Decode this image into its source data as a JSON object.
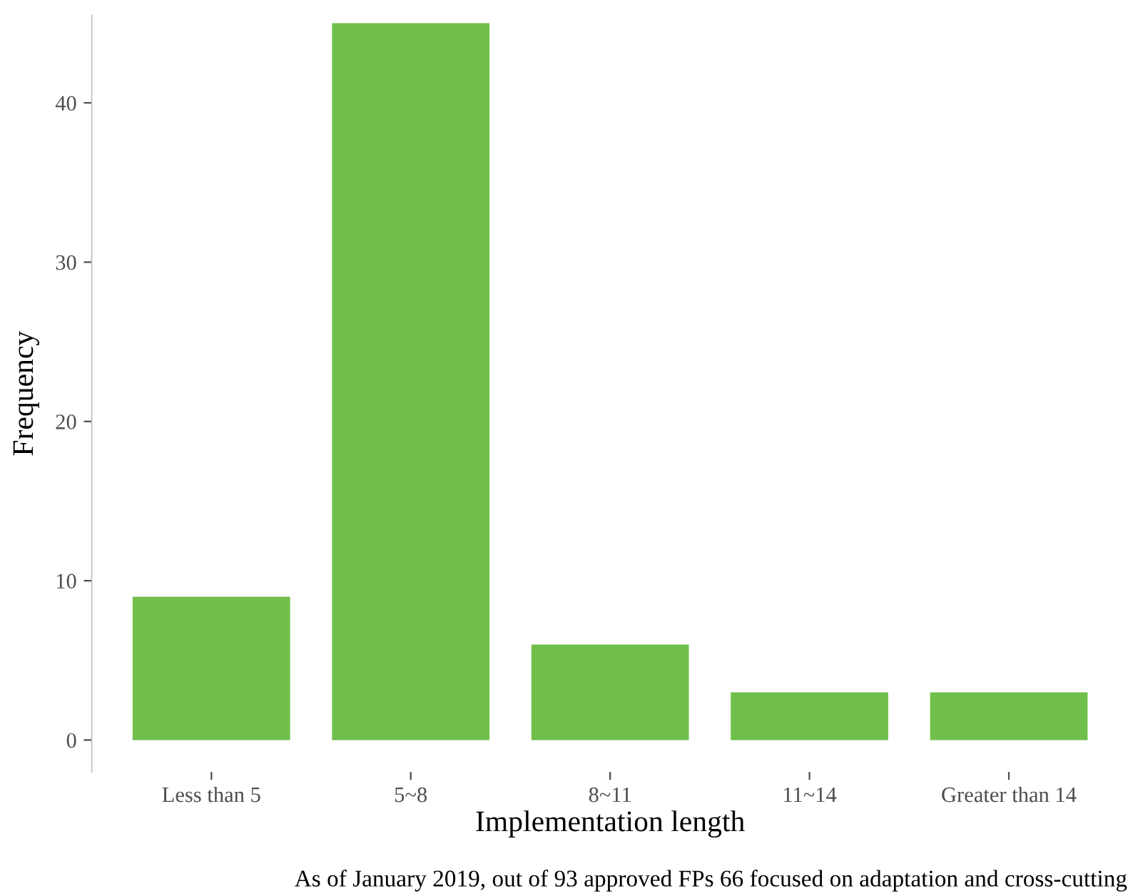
{
  "chart_data": {
    "type": "bar",
    "xlabel": "Implementation length",
    "ylabel": "Frequency",
    "categories": [
      "Less than 5",
      "5~8",
      "8~11",
      "11~14",
      "Greater than 14"
    ],
    "values": [
      9,
      45,
      6,
      3,
      3
    ],
    "color": "#70bf4a",
    "ylim": [
      -2,
      45.5
    ],
    "yticks": [
      0,
      10,
      20,
      30,
      40
    ],
    "grid": false,
    "legend": false,
    "annotations": [
      "As of January 2019, out of 93 approved FPs 66 focused on adaptation and cross-cutting"
    ]
  }
}
